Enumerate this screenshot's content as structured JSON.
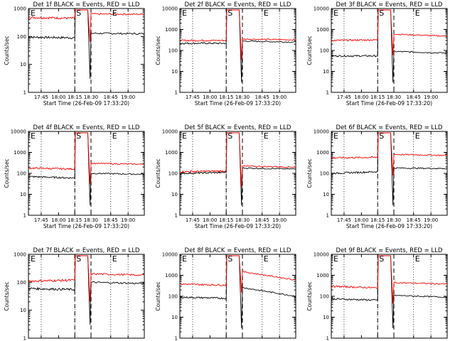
{
  "colors": {
    "events": "#000000",
    "lld": "#ff0000",
    "background": "#ffffff"
  },
  "panels": [
    {
      "title": "Det 1f BLACK = Events, RED = LLD",
      "xlabel": "Start Time (26-Feb-09 17:33:20)",
      "ylabel": "Counts/sec",
      "xticks": [
        "17:45",
        "18:00",
        "18:15",
        "18:30",
        "18:45",
        "19:00"
      ],
      "yticks": [
        "1",
        "10",
        "100",
        "1000"
      ],
      "markers": [
        "E",
        "S",
        "E"
      ],
      "chart_data": {
        "type": "line",
        "yscale": "log",
        "ylim": [
          1,
          1000
        ],
        "time_range_min": [
          0,
          100
        ],
        "pre_min": [
          0,
          40
        ],
        "post_min": [
          54,
          100
        ],
        "series": [
          {
            "key": "events",
            "pre": [
              95,
              90
            ],
            "post": [
              130,
              125
            ]
          },
          {
            "key": "lld",
            "pre": [
              480,
              450
            ],
            "post": [
              640,
              620
            ]
          }
        ]
      }
    },
    {
      "title": "Det 2f BLACK = Events, RED = LLD",
      "xlabel": "Start Time (26-Feb-09 17:33:20)",
      "ylabel": "Counts/sec",
      "xticks": [
        "17:45",
        "18:00",
        "18:15",
        "18:30",
        "18:45",
        "19:00"
      ],
      "yticks": [
        "1",
        "10",
        "100",
        "1000",
        "10000"
      ],
      "markers": [
        "E",
        "S",
        "E"
      ],
      "chart_data": {
        "type": "line",
        "yscale": "log",
        "ylim": [
          1,
          10000
        ],
        "time_range_min": [
          0,
          100
        ],
        "pre_min": [
          0,
          40
        ],
        "post_min": [
          54,
          100
        ],
        "series": [
          {
            "key": "events",
            "pre": [
              220,
              220
            ],
            "post": [
              280,
              250
            ]
          },
          {
            "key": "lld",
            "pre": [
              300,
              300
            ],
            "post": [
              350,
              320
            ]
          }
        ]
      }
    },
    {
      "title": "Det 3f BLACK = Events, RED = LLD",
      "xlabel": "Start Time (26-Feb-09 17:33:20)",
      "ylabel": "Counts/sec",
      "xticks": [
        "17:45",
        "18:00",
        "18:15",
        "18:30",
        "18:45",
        "19:00"
      ],
      "yticks": [
        "1",
        "10",
        "100",
        "1000",
        "10000"
      ],
      "markers": [
        "E",
        "S",
        "E"
      ],
      "chart_data": {
        "type": "line",
        "yscale": "log",
        "ylim": [
          1,
          10000
        ],
        "time_range_min": [
          0,
          100
        ],
        "pre_min": [
          0,
          40
        ],
        "post_min": [
          54,
          100
        ],
        "series": [
          {
            "key": "events",
            "pre": [
              55,
              55
            ],
            "post": [
              90,
              75
            ]
          },
          {
            "key": "lld",
            "pre": [
              300,
              320
            ],
            "post": [
              600,
              480
            ]
          }
        ]
      }
    },
    {
      "title": "Det 4f BLACK = Events, RED = LLD",
      "xlabel": "Start Time (26-Feb-09 17:33:20)",
      "ylabel": "Counts/sec",
      "xticks": [
        "17:45",
        "18:00",
        "18:15",
        "18:30",
        "18:45",
        "19:00"
      ],
      "yticks": [
        "1",
        "10",
        "100",
        "1000",
        "10000"
      ],
      "markers": [
        "E",
        "S",
        "E"
      ],
      "chart_data": {
        "type": "line",
        "yscale": "log",
        "ylim": [
          1,
          10000
        ],
        "time_range_min": [
          0,
          100
        ],
        "pre_min": [
          0,
          40
        ],
        "post_min": [
          54,
          100
        ],
        "series": [
          {
            "key": "events",
            "pre": [
              70,
              60
            ],
            "post": [
              100,
              90
            ]
          },
          {
            "key": "lld",
            "pre": [
              180,
              160
            ],
            "post": [
              300,
              270
            ]
          }
        ]
      }
    },
    {
      "title": "Det 5f BLACK = Events, RED = LLD",
      "xlabel": "Start Time (26-Feb-09 17:33:20)",
      "ylabel": "Counts/sec",
      "xticks": [
        "17:45",
        "18:00",
        "18:15",
        "18:30",
        "18:45",
        "19:00"
      ],
      "yticks": [
        "1",
        "10",
        "100",
        "1000",
        "10000"
      ],
      "markers": [
        "E",
        "S",
        "E"
      ],
      "chart_data": {
        "type": "line",
        "yscale": "log",
        "ylim": [
          1,
          10000
        ],
        "time_range_min": [
          0,
          100
        ],
        "pre_min": [
          0,
          40
        ],
        "post_min": [
          54,
          100
        ],
        "series": [
          {
            "key": "events",
            "pre": [
              100,
              110
            ],
            "post": [
              180,
              160
            ]
          },
          {
            "key": "lld",
            "pre": [
              120,
              130
            ],
            "post": [
              220,
              200
            ]
          }
        ]
      }
    },
    {
      "title": "Det 6f BLACK = Events, RED = LLD",
      "xlabel": "Start Time (26-Feb-09 17:33:20)",
      "ylabel": "Counts/sec",
      "xticks": [
        "17:45",
        "18:00",
        "18:15",
        "18:30",
        "18:45",
        "19:00"
      ],
      "yticks": [
        "1",
        "10",
        "100",
        "1000",
        "10000"
      ],
      "markers": [
        "E",
        "S",
        "E"
      ],
      "chart_data": {
        "type": "line",
        "yscale": "log",
        "ylim": [
          1,
          10000
        ],
        "time_range_min": [
          0,
          100
        ],
        "pre_min": [
          0,
          40
        ],
        "post_min": [
          54,
          100
        ],
        "series": [
          {
            "key": "events",
            "pre": [
              100,
              120
            ],
            "post": [
              180,
              170
            ]
          },
          {
            "key": "lld",
            "pre": [
              550,
              580
            ],
            "post": [
              800,
              720
            ]
          }
        ]
      }
    },
    {
      "title": "Det 7f BLACK = Events, RED = LLD",
      "xlabel": "Start Time (26-Feb-09 17:33:20)",
      "ylabel": "Counts/sec",
      "xticks": [
        "17:45",
        "18:00",
        "18:15",
        "18:30",
        "18:45",
        "19:00"
      ],
      "yticks": [
        "1",
        "10",
        "100",
        "1000"
      ],
      "markers": [
        "E",
        "S",
        "E"
      ],
      "chart_data": {
        "type": "line",
        "yscale": "log",
        "ylim": [
          1,
          1000
        ],
        "time_range_min": [
          0,
          100
        ],
        "pre_min": [
          0,
          40
        ],
        "post_min": [
          54,
          100
        ],
        "series": [
          {
            "key": "events",
            "pre": [
              60,
              55
            ],
            "post": [
              100,
              90
            ]
          },
          {
            "key": "lld",
            "pre": [
              110,
              120
            ],
            "post": [
              200,
              180
            ]
          }
        ]
      }
    },
    {
      "title": "Det 8f BLACK = Events, RED = LLD",
      "xlabel": "Start Time (26-Feb-09 17:33:20)",
      "ylabel": "Counts/sec",
      "xticks": [
        "17:45",
        "18:00",
        "18:15",
        "18:30",
        "18:45",
        "19:00"
      ],
      "yticks": [
        "1",
        "10",
        "100",
        "1000",
        "10000"
      ],
      "markers": [
        "E",
        "S",
        "E"
      ],
      "chart_data": {
        "type": "line",
        "yscale": "log",
        "ylim": [
          1,
          10000
        ],
        "time_range_min": [
          0,
          100
        ],
        "pre_min": [
          0,
          40
        ],
        "post_min": [
          54,
          100
        ],
        "series": [
          {
            "key": "events",
            "pre": [
              90,
              80
            ],
            "post": [
              260,
              100
            ]
          },
          {
            "key": "lld",
            "pre": [
              380,
              340
            ],
            "post": [
              1500,
              600
            ]
          }
        ]
      }
    },
    {
      "title": "Det 9f BLACK = Events, RED = LLD",
      "xlabel": "Start Time (26-Feb-09 17:33:20)",
      "ylabel": "Counts/sec",
      "xticks": [
        "17:45",
        "18:00",
        "18:15",
        "18:30",
        "18:45",
        "19:00"
      ],
      "yticks": [
        "1",
        "10",
        "100",
        "1000",
        "10000"
      ],
      "markers": [
        "E",
        "S",
        "E"
      ],
      "chart_data": {
        "type": "line",
        "yscale": "log",
        "ylim": [
          1,
          10000
        ],
        "time_range_min": [
          0,
          100
        ],
        "pre_min": [
          0,
          40
        ],
        "post_min": [
          54,
          100
        ],
        "series": [
          {
            "key": "events",
            "pre": [
              75,
              65
            ],
            "post": [
              110,
              90
            ]
          },
          {
            "key": "lld",
            "pre": [
              300,
              250
            ],
            "post": [
              450,
              380
            ]
          }
        ]
      }
    }
  ]
}
